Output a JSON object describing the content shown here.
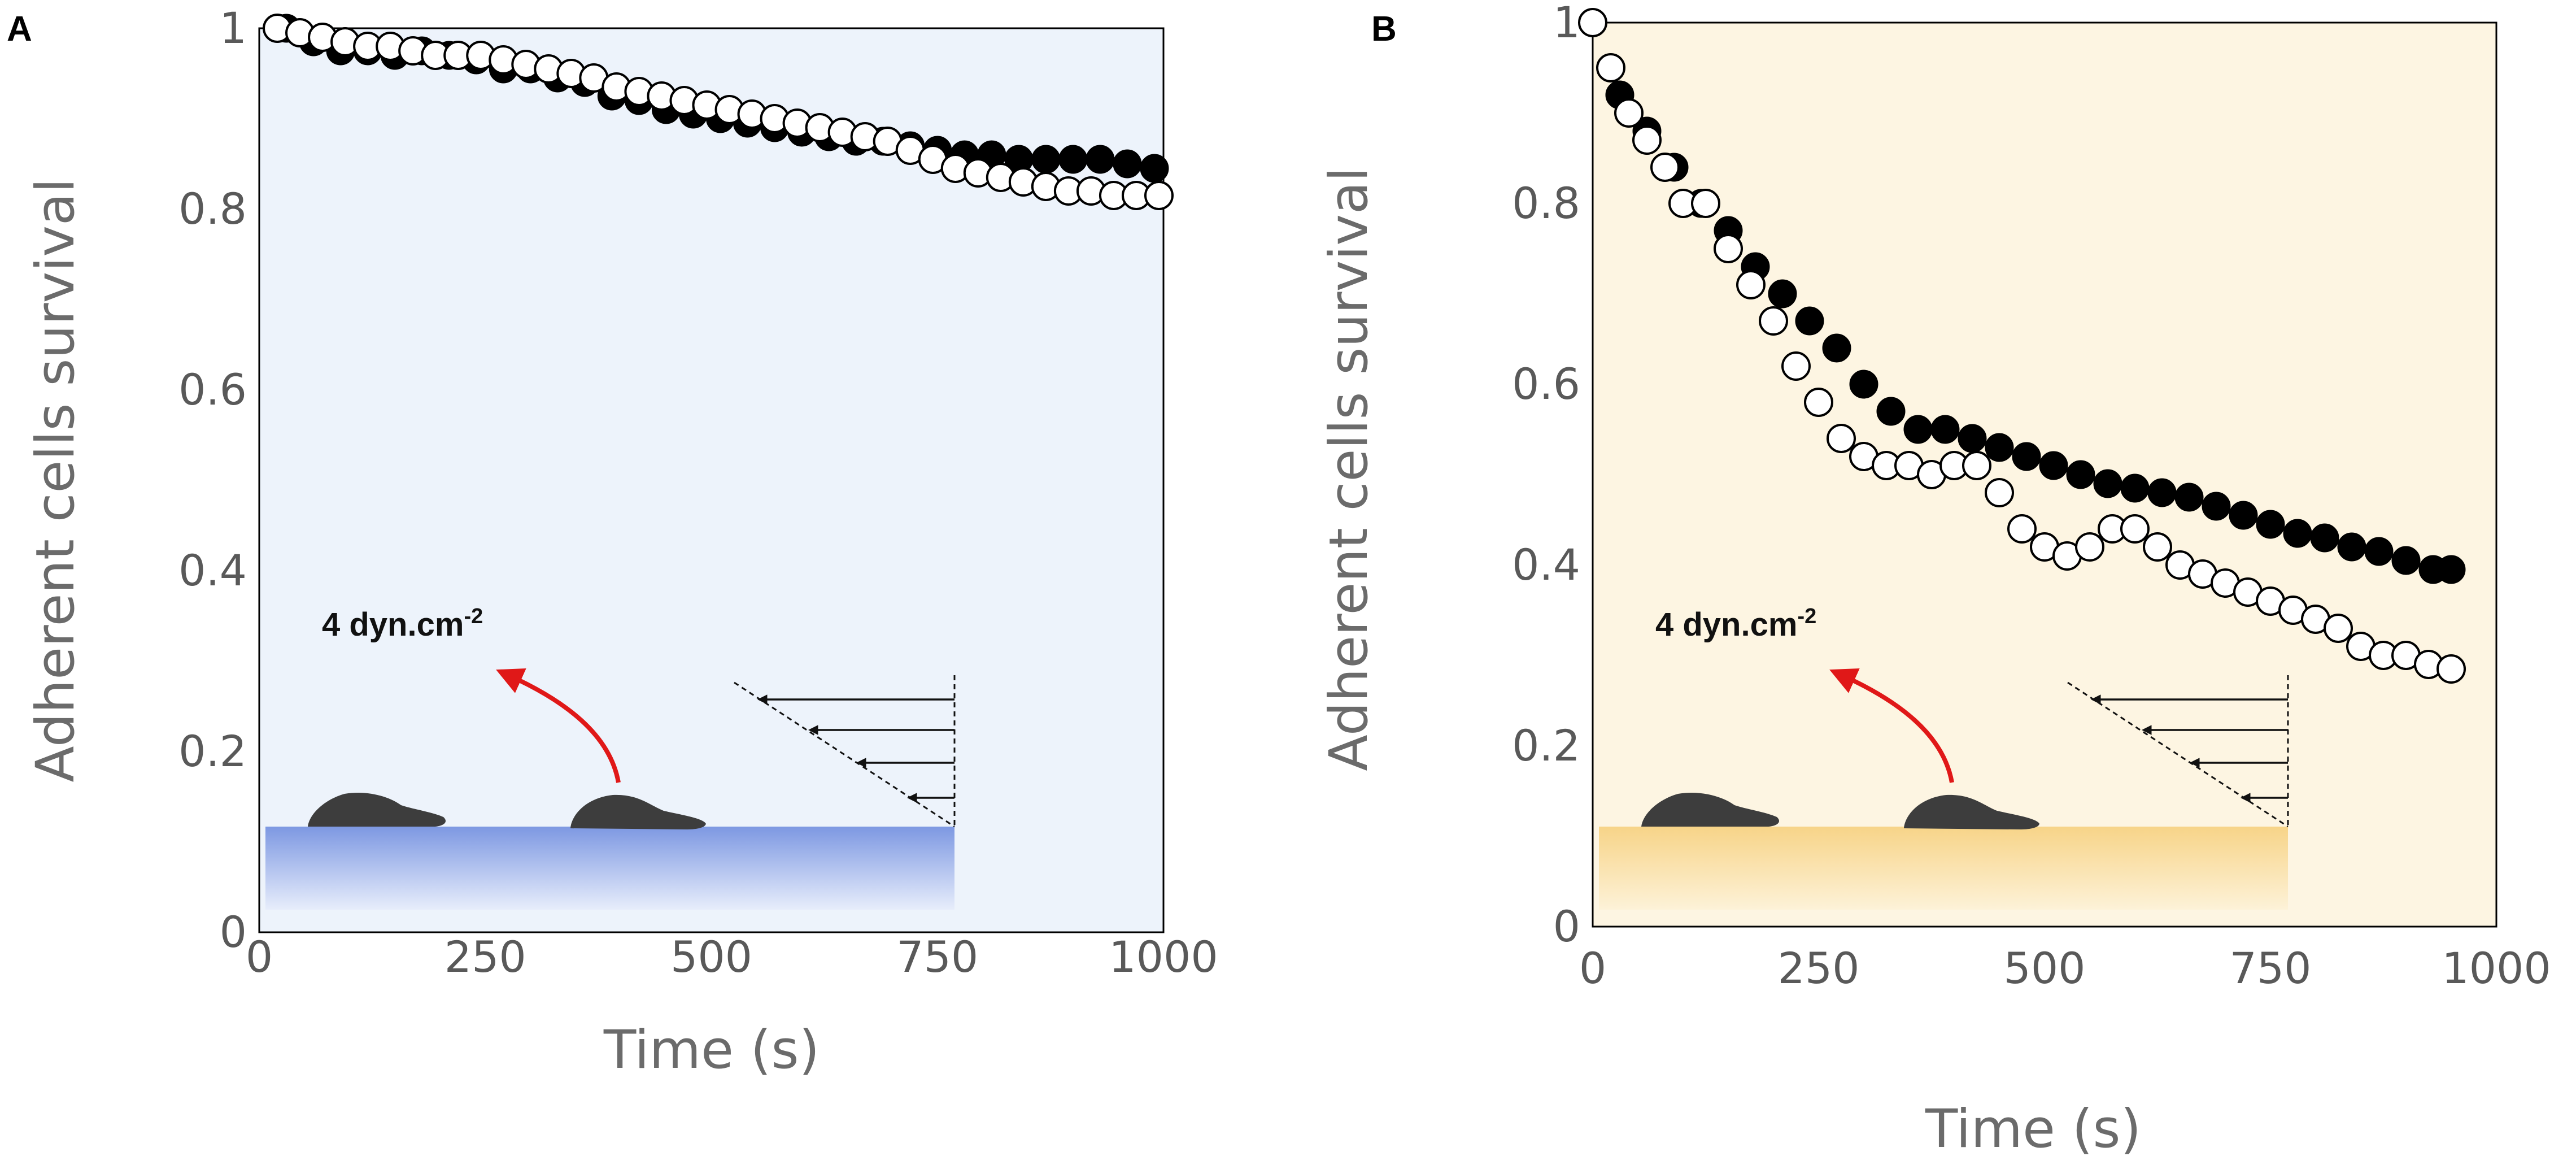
{
  "figure": {
    "panels": [
      "A",
      "B"
    ]
  },
  "chart_data": [
    {
      "panel": "A",
      "type": "scatter",
      "title": "",
      "xlabel": "Time (s)",
      "ylabel": "Adherent cells survival",
      "xlim": [
        0,
        1000
      ],
      "ylim": [
        0,
        1
      ],
      "xticks": [
        "0",
        "250",
        "500",
        "750",
        "1000"
      ],
      "yticks": [
        "0",
        "0.2",
        "0.4",
        "0.6",
        "0.8",
        "1"
      ],
      "background": "#edf3fb",
      "annotation": {
        "text": "4 dyn.cm",
        "sup": "-2"
      },
      "inset": {
        "substrate_top": "#7d98e2",
        "substrate_bottom": "#e7edfb"
      },
      "series": [
        {
          "name": "filled",
          "marker": "filled-circle",
          "color": "#000000",
          "x": [
            30,
            60,
            90,
            120,
            150,
            180,
            210,
            240,
            270,
            300,
            330,
            360,
            390,
            420,
            450,
            480,
            510,
            540,
            570,
            600,
            630,
            660,
            690,
            720,
            750,
            780,
            810,
            840,
            870,
            900,
            930,
            960,
            990
          ],
          "y": [
            1.0,
            0.985,
            0.975,
            0.975,
            0.97,
            0.975,
            0.97,
            0.965,
            0.955,
            0.955,
            0.945,
            0.94,
            0.925,
            0.92,
            0.91,
            0.905,
            0.9,
            0.895,
            0.89,
            0.885,
            0.88,
            0.875,
            0.875,
            0.87,
            0.865,
            0.86,
            0.86,
            0.855,
            0.855,
            0.855,
            0.855,
            0.85,
            0.845
          ]
        },
        {
          "name": "open",
          "marker": "open-circle",
          "color": "#000000",
          "x": [
            20,
            45,
            70,
            95,
            120,
            145,
            170,
            195,
            220,
            245,
            270,
            295,
            320,
            345,
            370,
            395,
            420,
            445,
            470,
            495,
            520,
            545,
            570,
            595,
            620,
            645,
            670,
            695,
            720,
            745,
            770,
            795,
            820,
            845,
            870,
            895,
            920,
            945,
            970,
            995
          ],
          "y": [
            1.0,
            0.995,
            0.99,
            0.985,
            0.98,
            0.98,
            0.975,
            0.97,
            0.97,
            0.97,
            0.965,
            0.96,
            0.955,
            0.95,
            0.945,
            0.935,
            0.93,
            0.925,
            0.92,
            0.915,
            0.91,
            0.905,
            0.9,
            0.895,
            0.89,
            0.885,
            0.88,
            0.875,
            0.865,
            0.855,
            0.845,
            0.84,
            0.835,
            0.83,
            0.825,
            0.82,
            0.82,
            0.815,
            0.815,
            0.815
          ]
        }
      ]
    },
    {
      "panel": "B",
      "type": "scatter",
      "title": "",
      "xlabel": "Time (s)",
      "ylabel": "Adherent cells survival",
      "xlim": [
        0,
        1000
      ],
      "ylim": [
        0,
        1
      ],
      "xticks": [
        "0",
        "250",
        "500",
        "750",
        "1000"
      ],
      "yticks": [
        "0",
        "0.2",
        "0.4",
        "0.6",
        "0.8",
        "1"
      ],
      "background": "#fdf5e2",
      "annotation": {
        "text": "4 dyn.cm",
        "sup": "-2"
      },
      "inset": {
        "substrate_top": "#f7d488",
        "substrate_bottom": "#fdf2d8"
      },
      "series": [
        {
          "name": "filled",
          "marker": "filled-circle",
          "color": "#000000",
          "x": [
            0,
            30,
            60,
            90,
            120,
            150,
            180,
            210,
            240,
            270,
            300,
            330,
            360,
            390,
            420,
            450,
            480,
            510,
            540,
            570,
            600,
            630,
            660,
            690,
            720,
            750,
            780,
            810,
            840,
            870,
            900,
            930,
            950
          ],
          "y": [
            1.0,
            0.92,
            0.88,
            0.84,
            0.8,
            0.77,
            0.73,
            0.7,
            0.67,
            0.64,
            0.6,
            0.57,
            0.55,
            0.55,
            0.54,
            0.53,
            0.52,
            0.51,
            0.5,
            0.49,
            0.485,
            0.48,
            0.475,
            0.465,
            0.455,
            0.445,
            0.435,
            0.43,
            0.42,
            0.415,
            0.405,
            0.395,
            0.395
          ]
        },
        {
          "name": "open",
          "marker": "open-circle",
          "color": "#000000",
          "x": [
            0,
            20,
            40,
            60,
            80,
            100,
            125,
            150,
            175,
            200,
            225,
            250,
            275,
            300,
            325,
            350,
            375,
            400,
            425,
            450,
            475,
            500,
            525,
            550,
            575,
            600,
            625,
            650,
            675,
            700,
            725,
            750,
            775,
            800,
            825,
            850,
            875,
            900,
            925,
            950
          ],
          "y": [
            1.0,
            0.95,
            0.9,
            0.87,
            0.84,
            0.8,
            0.8,
            0.75,
            0.71,
            0.67,
            0.62,
            0.58,
            0.54,
            0.52,
            0.51,
            0.51,
            0.5,
            0.51,
            0.51,
            0.48,
            0.44,
            0.42,
            0.41,
            0.42,
            0.44,
            0.44,
            0.42,
            0.4,
            0.39,
            0.38,
            0.37,
            0.36,
            0.35,
            0.34,
            0.33,
            0.31,
            0.3,
            0.3,
            0.29,
            0.285
          ]
        }
      ]
    }
  ]
}
